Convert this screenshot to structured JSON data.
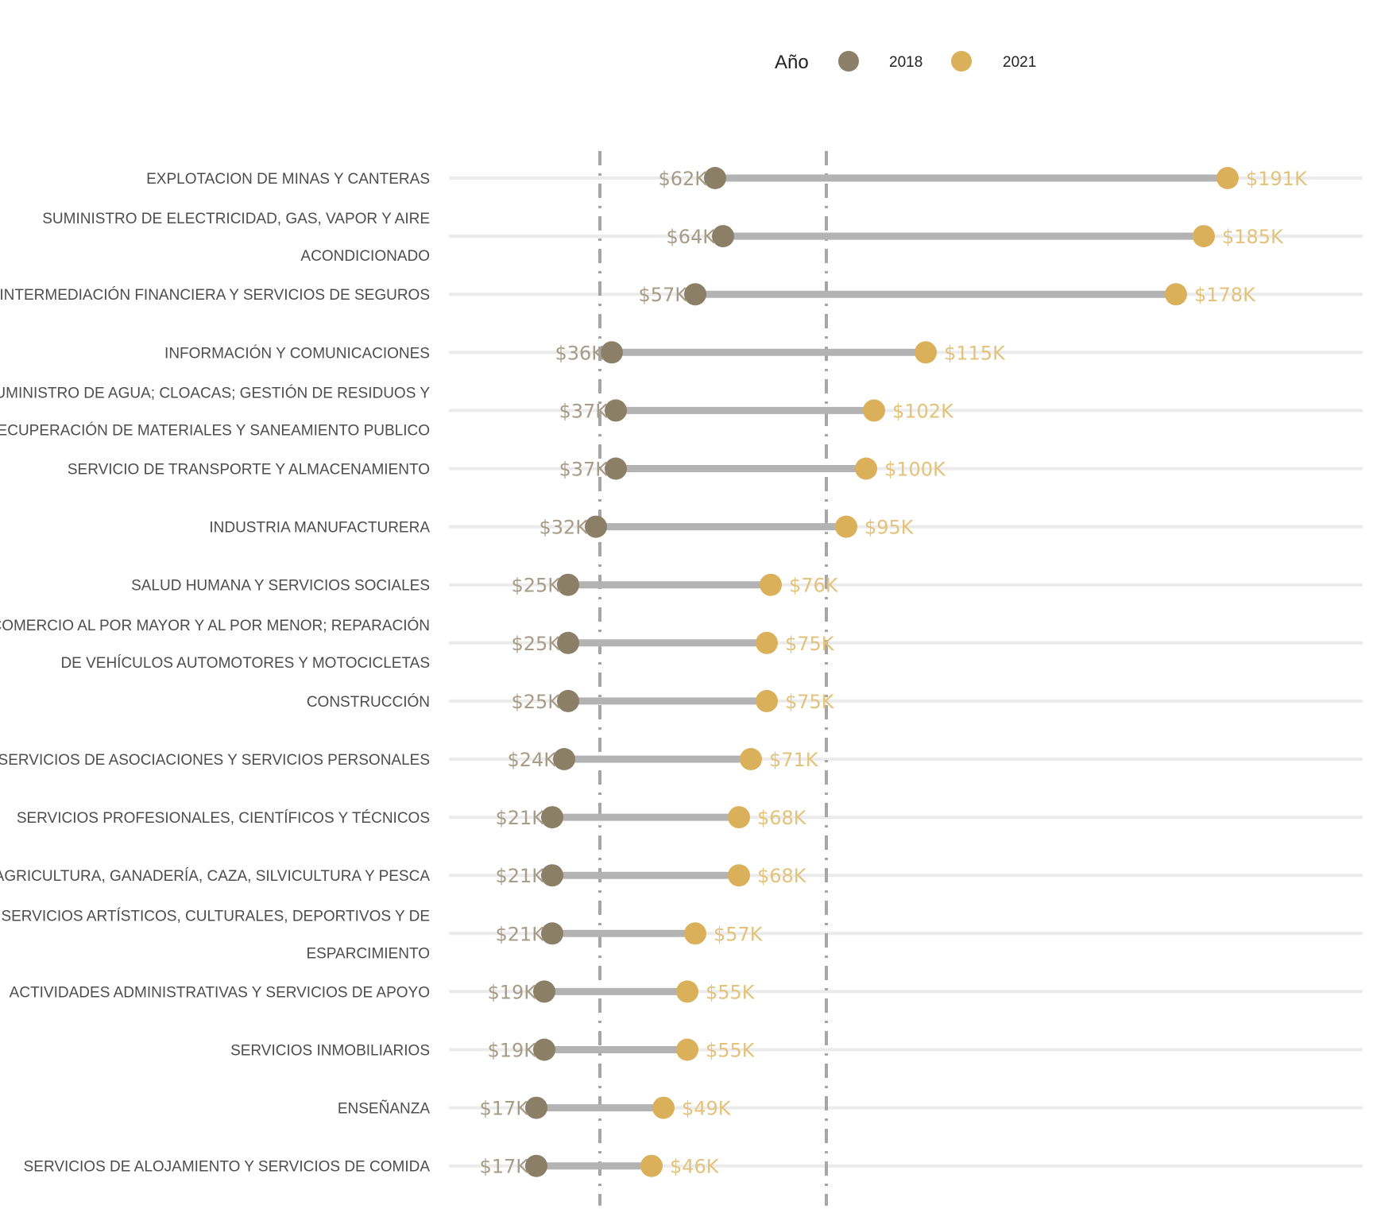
{
  "colors": {
    "y2018": "#8c7f68",
    "y2021": "#dbb05a",
    "label2018": "#a79c88",
    "label2021": "#e3c27b",
    "segment": "#b3b3b3",
    "row_line": "#ebebeb",
    "reference": "#a6a6a6"
  },
  "chart_data": {
    "type": "dumbbell",
    "legend": {
      "title": "Año",
      "entries": [
        "2018",
        "2021"
      ],
      "placement": "top"
    },
    "reference_lines": [
      33,
      90
    ],
    "xlim": [
      -5,
      225
    ],
    "grid": "horizontal",
    "rows": [
      {
        "label": [
          "EXPLOTACION DE MINAS Y CANTERAS"
        ],
        "v2018": 62,
        "v2021": 191,
        "l2018": "$62K",
        "l2021": "$191K"
      },
      {
        "label": [
          "SUMINISTRO DE ELECTRICIDAD, GAS, VAPOR Y AIRE",
          "ACONDICIONADO"
        ],
        "v2018": 64,
        "v2021": 185,
        "l2018": "$64K",
        "l2021": "$185K"
      },
      {
        "label": [
          "INTERMEDIACIÓN FINANCIERA Y SERVICIOS DE SEGUROS"
        ],
        "v2018": 57,
        "v2021": 178,
        "l2018": "$57K",
        "l2021": "$178K"
      },
      {
        "label": [
          "INFORMACIÓN Y COMUNICACIONES"
        ],
        "v2018": 36,
        "v2021": 115,
        "l2018": "$36K",
        "l2021": "$115K"
      },
      {
        "label": [
          "SUMINISTRO DE AGUA; CLOACAS; GESTIÓN DE RESIDUOS Y",
          "RECUPERACIÓN DE MATERIALES Y SANEAMIENTO PUBLICO"
        ],
        "v2018": 37,
        "v2021": 102,
        "l2018": "$37K",
        "l2021": "$102K"
      },
      {
        "label": [
          "SERVICIO DE TRANSPORTE Y ALMACENAMIENTO"
        ],
        "v2018": 37,
        "v2021": 100,
        "l2018": "$37K",
        "l2021": "$100K"
      },
      {
        "label": [
          "INDUSTRIA MANUFACTURERA"
        ],
        "v2018": 32,
        "v2021": 95,
        "l2018": "$32K",
        "l2021": "$95K"
      },
      {
        "label": [
          "SALUD HUMANA Y SERVICIOS SOCIALES"
        ],
        "v2018": 25,
        "v2021": 76,
        "l2018": "$25K",
        "l2021": "$76K"
      },
      {
        "label": [
          "COMERCIO AL POR MAYOR Y AL POR MENOR; REPARACIÓN",
          "DE VEHÍCULOS AUTOMOTORES Y MOTOCICLETAS"
        ],
        "v2018": 25,
        "v2021": 75,
        "l2018": "$25K",
        "l2021": "$75K"
      },
      {
        "label": [
          "CONSTRUCCIÓN"
        ],
        "v2018": 25,
        "v2021": 75,
        "l2018": "$25K",
        "l2021": "$75K"
      },
      {
        "label": [
          "SERVICIOS DE ASOCIACIONES Y SERVICIOS PERSONALES"
        ],
        "v2018": 24,
        "v2021": 71,
        "l2018": "$24K",
        "l2021": "$71K"
      },
      {
        "label": [
          "SERVICIOS PROFESIONALES, CIENTÍFICOS Y TÉCNICOS"
        ],
        "v2018": 21,
        "v2021": 68,
        "l2018": "$21K",
        "l2021": "$68K"
      },
      {
        "label": [
          "AGRICULTURA, GANADERÍA, CAZA, SILVICULTURA Y PESCA"
        ],
        "v2018": 21,
        "v2021": 68,
        "l2018": "$21K",
        "l2021": "$68K"
      },
      {
        "label": [
          "SERVICIOS ARTÍSTICOS, CULTURALES, DEPORTIVOS Y DE",
          "ESPARCIMIENTO"
        ],
        "v2018": 21,
        "v2021": 57,
        "l2018": "$21K",
        "l2021": "$57K"
      },
      {
        "label": [
          "ACTIVIDADES ADMINISTRATIVAS Y SERVICIOS DE APOYO"
        ],
        "v2018": 19,
        "v2021": 55,
        "l2018": "$19K",
        "l2021": "$55K"
      },
      {
        "label": [
          "SERVICIOS INMOBILIARIOS"
        ],
        "v2018": 19,
        "v2021": 55,
        "l2018": "$19K",
        "l2021": "$55K"
      },
      {
        "label": [
          "ENSEÑANZA"
        ],
        "v2018": 17,
        "v2021": 49,
        "l2018": "$17K",
        "l2021": "$49K"
      },
      {
        "label": [
          "SERVICIOS DE ALOJAMIENTO Y SERVICIOS DE COMIDA"
        ],
        "v2018": 17,
        "v2021": 46,
        "l2018": "$17K",
        "l2021": "$46K"
      }
    ]
  }
}
